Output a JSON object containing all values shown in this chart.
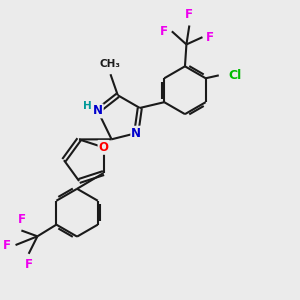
{
  "background_color": "#ebebeb",
  "bond_color": "#1a1a1a",
  "bond_width": 1.5,
  "atom_colors": {
    "N": "#0000cc",
    "O": "#ff0000",
    "Cl": "#00bb00",
    "F": "#ee00ee",
    "C": "#1a1a1a",
    "H": "#009999"
  }
}
